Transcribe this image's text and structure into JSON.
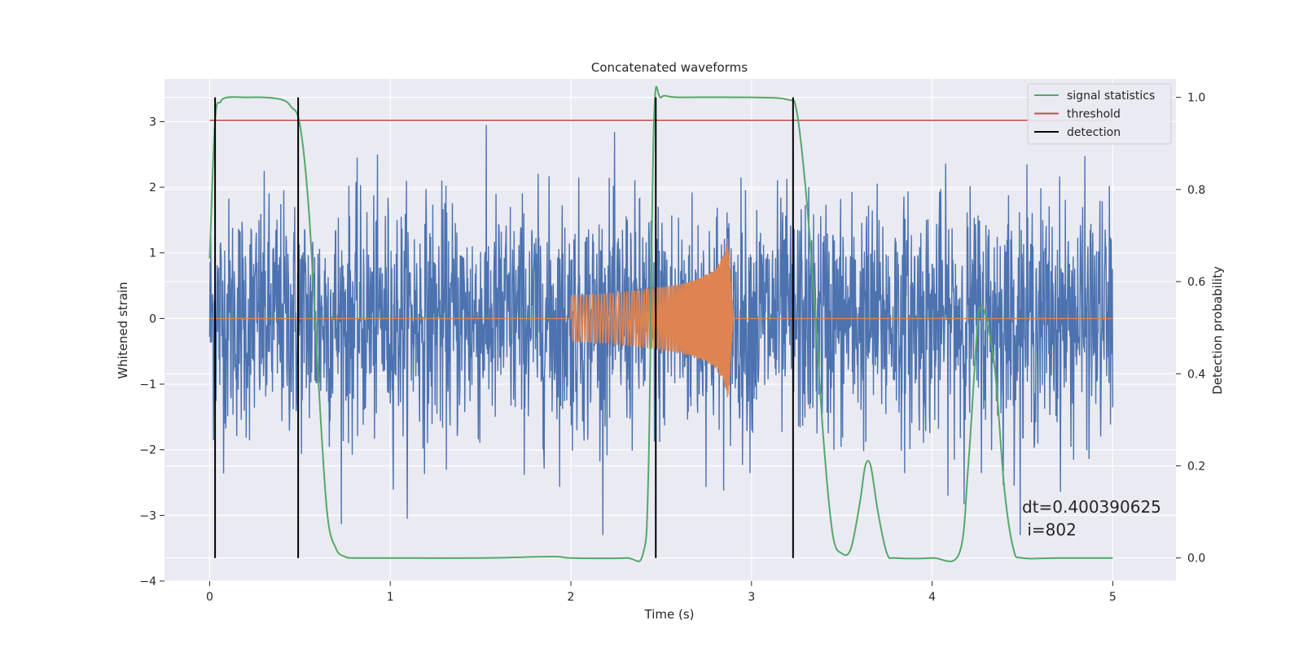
{
  "chart_data": {
    "type": "line",
    "title": "Concatenated waveforms",
    "xlabel": "Time (s)",
    "ylabel": "Whitened strain",
    "ylabel_right": "Detection probability",
    "xlim": [
      -0.25,
      5.35
    ],
    "ylim": [
      -4,
      3.65
    ],
    "ylim_right": [
      -0.05,
      1.04
    ],
    "xticks": [
      0,
      1,
      2,
      3,
      4,
      5
    ],
    "yticks": [
      -4,
      -3,
      -2,
      -1,
      0,
      1,
      2,
      3
    ],
    "yticks_right": [
      0.0,
      0.2,
      0.4,
      0.6,
      0.8,
      1.0
    ],
    "ytick_labels": [
      "−4",
      "−3",
      "−2",
      "−1",
      "0",
      "1",
      "2",
      "3"
    ],
    "ytick_labels_right": [
      "0.0",
      "0.2",
      "0.4",
      "0.6",
      "0.8",
      "1.0"
    ],
    "grid": true,
    "legend_position": "top-right",
    "legend": [
      "signal statistics",
      "threshold",
      "detection"
    ],
    "annotation": [
      "dt=0.400390625",
      " i=802"
    ],
    "colors": {
      "strain": "#4c72b0",
      "waveform": "#dd8452",
      "signal": "#55a868",
      "threshold": "#c44e52",
      "detection": "#000000",
      "background": "#eaeaf2",
      "grid": "#ffffff"
    },
    "series": [
      {
        "name": "strain",
        "axis": "left",
        "description_points": {
          "x_range": [
            0,
            5
          ],
          "envelope": [
            -3.3,
            3.3
          ]
        }
      },
      {
        "name": "waveform",
        "axis": "left",
        "x": [
          2.0,
          2.2,
          2.4,
          2.6,
          2.7,
          2.8,
          2.85,
          2.87,
          2.9,
          5.0
        ],
        "amplitude": [
          0.35,
          0.38,
          0.44,
          0.52,
          0.6,
          0.75,
          1.0,
          1.25,
          0.0,
          0.0
        ]
      },
      {
        "name": "signal statistics",
        "axis": "right",
        "x": [
          0.0,
          0.03,
          0.06,
          0.1,
          0.2,
          0.3,
          0.4,
          0.45,
          0.5,
          0.55,
          0.6,
          0.65,
          0.7,
          0.75,
          0.8,
          1.0,
          1.5,
          1.9,
          2.0,
          2.3,
          2.4,
          2.43,
          2.46,
          2.5,
          2.6,
          3.0,
          3.2,
          3.25,
          3.3,
          3.35,
          3.4,
          3.45,
          3.5,
          3.55,
          3.6,
          3.63,
          3.66,
          3.7,
          3.75,
          3.8,
          4.0,
          4.15,
          4.2,
          4.25,
          4.27,
          4.3,
          4.35,
          4.4,
          4.45,
          4.5,
          4.7,
          5.0
        ],
        "y": [
          0.65,
          0.95,
          0.99,
          1.0,
          1.0,
          1.0,
          0.995,
          0.98,
          0.94,
          0.75,
          0.4,
          0.1,
          0.02,
          0.003,
          0.0,
          0.0,
          0.0,
          0.003,
          0.0,
          0.0,
          0.01,
          0.2,
          0.95,
          1.0,
          1.0,
          1.0,
          0.995,
          0.97,
          0.8,
          0.55,
          0.25,
          0.05,
          0.01,
          0.02,
          0.12,
          0.2,
          0.2,
          0.1,
          0.01,
          0.0,
          0.0,
          0.01,
          0.2,
          0.5,
          0.545,
          0.52,
          0.4,
          0.15,
          0.02,
          0.0,
          0.0,
          0.0
        ]
      },
      {
        "name": "threshold",
        "axis": "right",
        "x": [
          0,
          5
        ],
        "y": [
          0.95,
          0.95
        ]
      },
      {
        "name": "detection",
        "axis": "right",
        "x": [
          0.03,
          0.49,
          2.47,
          3.23
        ],
        "y_range": [
          0.0,
          1.0
        ]
      }
    ]
  }
}
